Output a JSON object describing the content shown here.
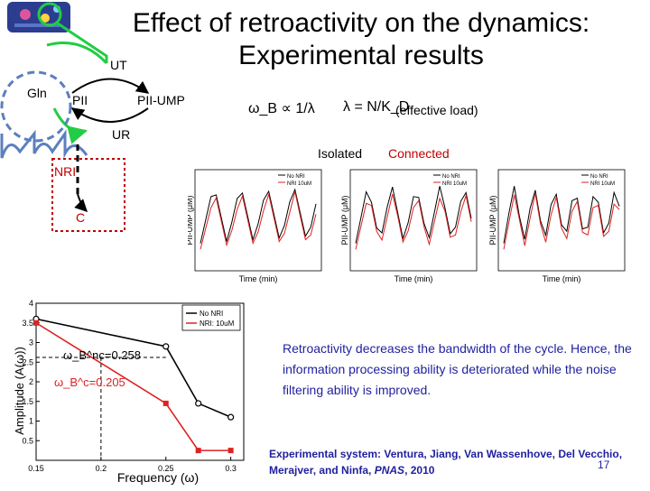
{
  "title": {
    "line1": "Effect of retroactivity on the dynamics:",
    "line2": "Experimental results"
  },
  "diagram": {
    "gln": "Gln",
    "ut": "UT",
    "pii": "PII",
    "pii_ump": "PII-UMP",
    "ur": "UR",
    "nri": "NRI",
    "c": "C"
  },
  "equations": {
    "omega_prop": "ω_B ∝ 1/λ",
    "lambda_def": "λ = N/K_D",
    "effective_load": "(effective load)"
  },
  "panel_labels": {
    "isolated": "Isolated",
    "connected": "Connected"
  },
  "timecourse_legend": [
    "No NRI",
    "NRI 10uM"
  ],
  "timecourse_axis": {
    "xlabel": "Time (min)",
    "ylabel": "PII-UMP (μM)"
  },
  "annotations": {
    "omega_nc": "ω_B^nc=0.258",
    "omega_c": "ω_B^c=0.205"
  },
  "chart_data": {
    "type": "line",
    "title": "",
    "xlabel": "Frequency (ω)",
    "ylabel": "Amplitude (A(ω))",
    "x": [
      0.15,
      0.25,
      0.275,
      0.3
    ],
    "series": [
      {
        "name": "No NRI",
        "color": "#000000",
        "values": [
          3.6,
          2.9,
          1.45,
          1.1
        ]
      },
      {
        "name": "NRI: 10uM",
        "color": "#dd2222",
        "values": [
          3.5,
          1.45,
          0.25,
          0.25
        ]
      }
    ],
    "xlim": [
      0.15,
      0.31
    ],
    "ylim": [
      0,
      4
    ],
    "xticks": [
      "0.15",
      "0.2",
      "0.25",
      "0.3"
    ],
    "yticks": [
      "0.5",
      "1",
      "1.5",
      "2",
      "2.5",
      "3",
      "3.5",
      "4"
    ],
    "grid": false,
    "legend": "top-right"
  },
  "statement": "Retroactivity decreases the bandwidth of the cycle. Hence, the information processing ability is deteriorated while the noise filtering ability is improved.",
  "citation": {
    "line1": "Experimental system: Ventura, Jiang, Van Wassenhove, Del Vecchio,",
    "line2_pre": "Merajver, and Ninfa, ",
    "journal": "PNAS",
    "year": ", 2010",
    "page": "17"
  },
  "colors": {
    "title": "#000000",
    "note": "#1f1f9f",
    "accent_red": "#c00000",
    "arrow_green": "#22cc44"
  }
}
